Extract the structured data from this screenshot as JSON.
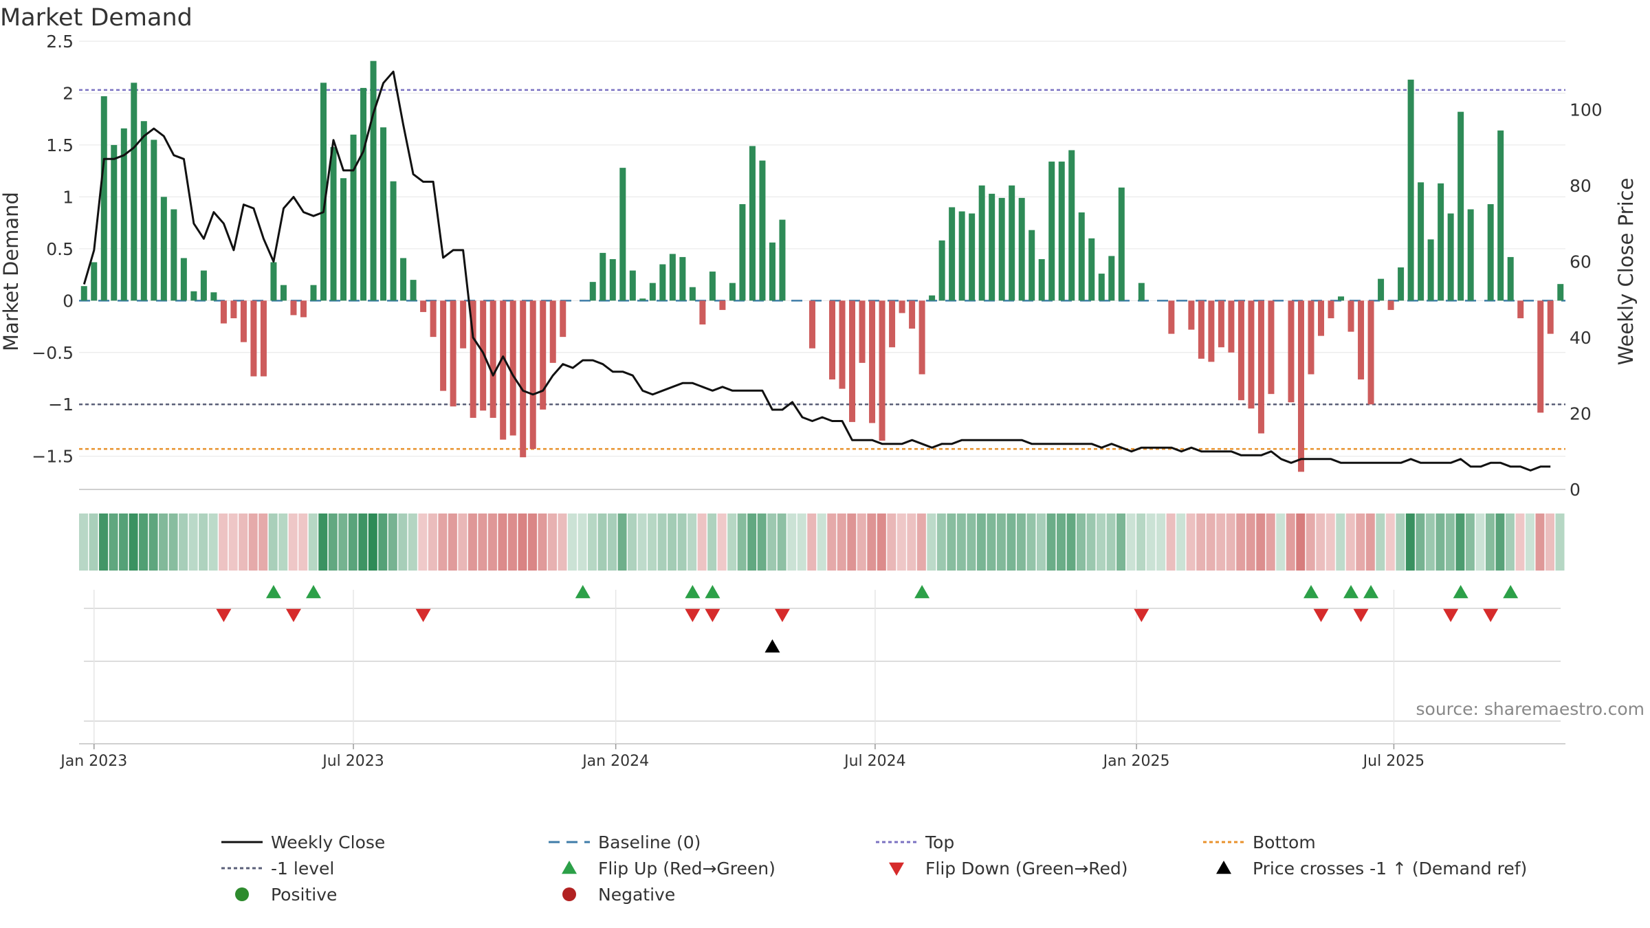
{
  "chart_data": {
    "type": "bar",
    "title": "Market Demand",
    "ylabel": "Market Demand",
    "y2label": "Weekly Close Price",
    "source": "source: sharemaestro.com",
    "ylim": [
      -1.82,
      2.5
    ],
    "y2lim": [
      0,
      118
    ],
    "yticks": [
      2.5,
      2,
      1.5,
      1,
      0.5,
      0,
      -0.5,
      -1,
      -1.5
    ],
    "ytick_labels": [
      "2.5",
      "2",
      "1.5",
      "1",
      "0.5",
      "0",
      "−0.5",
      "−1",
      "−1.5"
    ],
    "y2ticks": [
      100,
      80,
      60,
      40,
      20,
      0
    ],
    "y2tick_labels": [
      "100",
      "80",
      "60",
      "40",
      "20",
      "0"
    ],
    "xticks": [
      {
        "label": "Jan 2023",
        "week": 1.5
      },
      {
        "label": "Jul 2023",
        "week": 27.5
      },
      {
        "label": "Jan 2024",
        "week": 53.8
      },
      {
        "label": "Jul 2024",
        "week": 79.8
      },
      {
        "label": "Jan 2025",
        "week": 106
      },
      {
        "label": "Jul 2025",
        "week": 131.8
      }
    ],
    "top_level": 2.03,
    "bottom_level": -1.43,
    "minus_one_level": -1,
    "colors": {
      "positive": "#2e8b57",
      "negative": "#cd5c5c",
      "line": "#111111",
      "top": "#7b72c2",
      "minus_one": "#5a5f78",
      "bottom": "#e8922c",
      "baseline": "#3f7ca8",
      "flip_up": "#2ca048",
      "flip_down": "#d62b2b",
      "cross": "#000000"
    },
    "series": [
      {
        "name": "Market Demand",
        "values": [
          0.14,
          0.37,
          1.97,
          1.5,
          1.66,
          2.1,
          1.73,
          1.55,
          1.0,
          0.88,
          0.41,
          0.09,
          0.29,
          0.08,
          -0.22,
          -0.17,
          -0.4,
          -0.73,
          -0.73,
          0.37,
          0.15,
          -0.14,
          -0.16,
          0.15,
          2.1,
          1.48,
          1.18,
          1.6,
          2.05,
          2.31,
          1.67,
          1.15,
          0.41,
          0.2,
          -0.11,
          -0.35,
          -0.87,
          -1.02,
          -0.46,
          -1.13,
          -1.06,
          -1.13,
          -1.34,
          -1.3,
          -1.51,
          -1.43,
          -1.05,
          -0.6,
          -0.35,
          0,
          0,
          0.18,
          0.46,
          0.4,
          1.28,
          0.29,
          0.02,
          0.17,
          0.35,
          0.45,
          0.42,
          0.13,
          -0.23,
          0.28,
          -0.09,
          0.17,
          0.93,
          1.49,
          1.35,
          0.56,
          0.78,
          0,
          0,
          -0.46,
          0,
          -0.76,
          -0.85,
          -1.17,
          -0.6,
          -1.18,
          -1.35,
          -0.45,
          -0.12,
          -0.27,
          -0.71,
          0.05,
          0.58,
          0.9,
          0.86,
          0.84,
          1.11,
          1.03,
          0.99,
          1.11,
          0.99,
          0.68,
          0.4,
          1.34,
          1.34,
          1.45,
          0.85,
          0.6,
          0.26,
          0.43,
          1.09,
          0,
          0.17,
          0,
          0,
          -0.32,
          0,
          -0.28,
          -0.56,
          -0.59,
          -0.45,
          -0.5,
          -0.96,
          -1.04,
          -1.28,
          -0.9,
          0,
          -0.98,
          -1.65,
          -0.71,
          -0.34,
          -0.17,
          0.04,
          -0.3,
          -0.76,
          -1.0,
          0.21,
          -0.09,
          0.32,
          2.13,
          1.14,
          0.59,
          1.13,
          0.84,
          1.82,
          0.88,
          0,
          0.93,
          1.64,
          0.42,
          -0.17,
          0,
          -1.08,
          -0.32,
          0.16
        ]
      },
      {
        "name": "Weekly Close",
        "values": [
          54,
          63,
          87,
          87,
          88,
          90,
          93,
          95,
          93,
          88,
          87,
          70,
          66,
          73,
          70,
          63,
          75,
          74,
          66,
          60,
          74,
          77,
          73,
          72,
          73,
          92,
          84,
          84,
          89,
          99,
          107,
          110,
          96,
          83,
          81,
          81,
          61,
          63,
          63,
          40,
          36,
          30,
          35,
          30,
          26,
          25,
          26,
          30,
          33,
          32,
          34,
          34,
          33,
          31,
          31,
          30,
          26,
          25,
          26,
          27,
          28,
          28,
          27,
          26,
          27,
          26,
          26,
          26,
          26,
          21,
          21,
          23,
          19,
          18,
          19,
          18,
          18,
          13,
          13,
          13,
          12,
          12,
          12,
          13,
          12,
          11,
          12,
          12,
          13,
          13,
          13,
          13,
          13,
          13,
          13,
          12,
          12,
          12,
          12,
          12,
          12,
          12,
          11,
          12,
          11,
          10,
          11,
          11,
          11,
          11,
          10,
          11,
          10,
          10,
          10,
          10,
          9,
          9,
          9,
          10,
          8,
          7,
          8,
          8,
          8,
          8,
          7,
          7,
          7,
          7,
          7,
          7,
          7,
          8,
          7,
          7,
          7,
          7,
          8,
          6,
          6,
          7,
          7,
          6,
          6,
          5,
          6,
          6
        ]
      }
    ],
    "flip_up_weeks": [
      19,
      23,
      50,
      61,
      63,
      84,
      123,
      127,
      129,
      138,
      143
    ],
    "flip_down_weeks": [
      14,
      21,
      34,
      61,
      63,
      70,
      106,
      124,
      128,
      137,
      141
    ],
    "cross_weeks": [
      69
    ],
    "legend": {
      "weekly_close": "Weekly Close",
      "baseline": "Baseline (0)",
      "top": "Top",
      "bottom": "Bottom",
      "minus_one": "-1 level",
      "flip_up": "Flip Up (Red→Green)",
      "flip_down": "Flip Down (Green→Red)",
      "cross": "Price crosses -1 ↑ (Demand ref)",
      "positive": "Positive",
      "negative": "Negative"
    }
  }
}
